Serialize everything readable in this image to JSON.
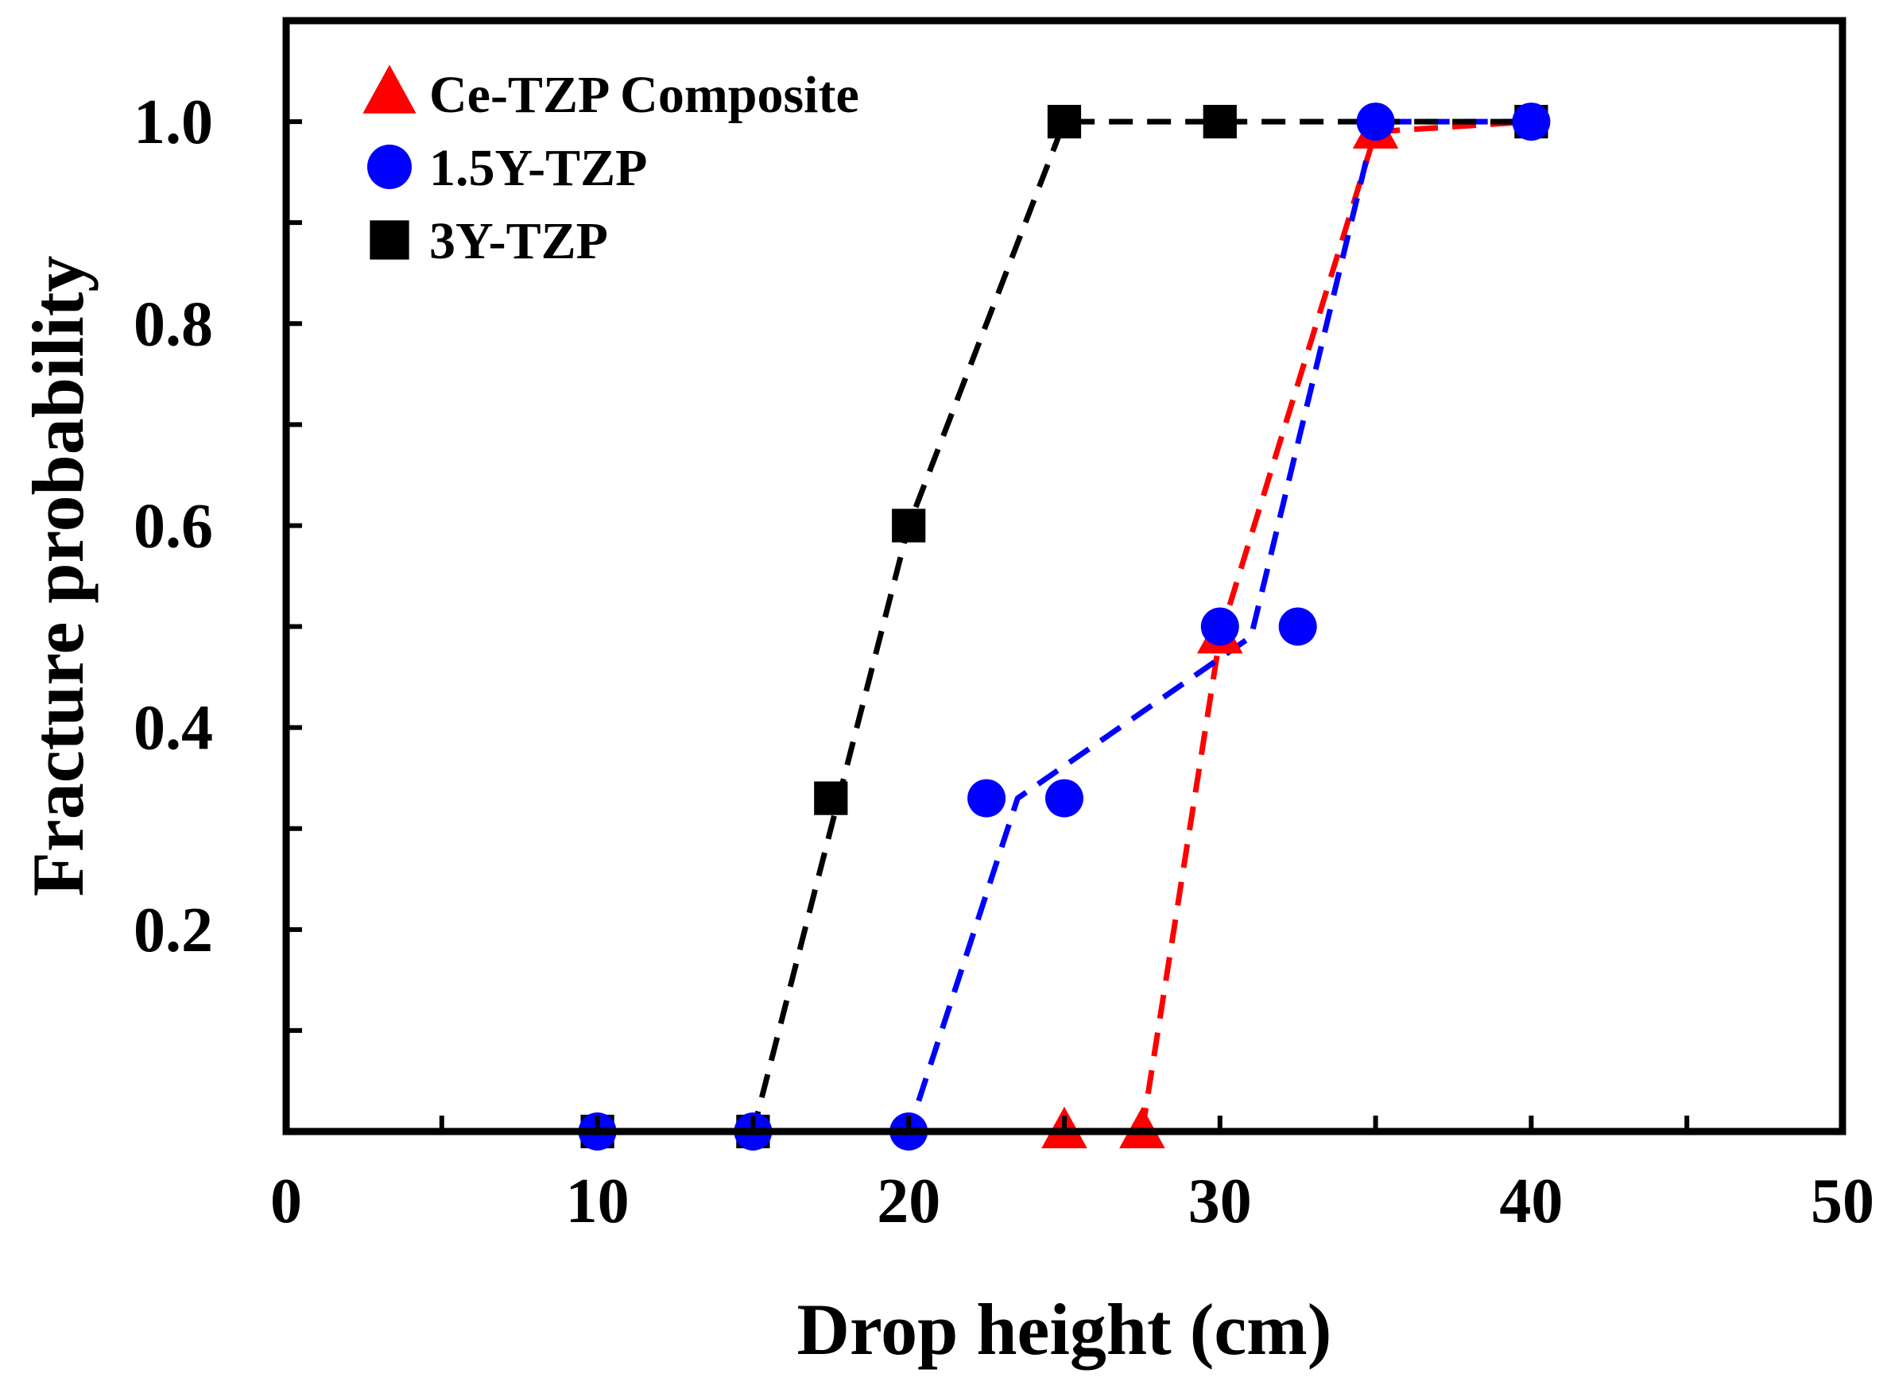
{
  "chart_data": {
    "type": "line",
    "title": "",
    "xlabel": "Drop height (cm)",
    "ylabel": "Fracture probability",
    "xlim": [
      0,
      50
    ],
    "ylim": [
      0,
      1.1
    ],
    "x_ticks": [
      0,
      10,
      20,
      30,
      40,
      50
    ],
    "x_tick_labels": [
      "0",
      "10",
      "20",
      "30",
      "40",
      "50"
    ],
    "y_ticks": [
      0.2,
      0.4,
      0.6,
      0.8,
      1.0
    ],
    "y_tick_labels": [
      "0.2",
      "0.4",
      "0.6",
      "0.8",
      "1.0"
    ],
    "grid": false,
    "legend_position": "top-left",
    "series": [
      {
        "name": "Ce-TZP Composite",
        "color": "#ff0000",
        "marker": "triangle",
        "points": [
          {
            "x": 25,
            "y": 0.0
          },
          {
            "x": 27.5,
            "y": 0.0
          },
          {
            "x": 30,
            "y": 0.49
          },
          {
            "x": 35,
            "y": 0.99
          }
        ],
        "fit_line": [
          {
            "x": 27.5,
            "y": 0.0
          },
          {
            "x": 30,
            "y": 0.49
          },
          {
            "x": 35,
            "y": 0.99
          },
          {
            "x": 40,
            "y": 1.0
          }
        ]
      },
      {
        "name": "1.5Y-TZP",
        "color": "#0000ff",
        "marker": "circle",
        "points": [
          {
            "x": 10,
            "y": 0.0
          },
          {
            "x": 15,
            "y": 0.0
          },
          {
            "x": 20,
            "y": 0.0
          },
          {
            "x": 22.5,
            "y": 0.33
          },
          {
            "x": 25,
            "y": 0.33
          },
          {
            "x": 30,
            "y": 0.5
          },
          {
            "x": 32.5,
            "y": 0.5
          },
          {
            "x": 35,
            "y": 1.0
          },
          {
            "x": 40,
            "y": 1.0
          }
        ],
        "fit_line": [
          {
            "x": 10,
            "y": 0.0
          },
          {
            "x": 20,
            "y": 0.0
          },
          {
            "x": 23.5,
            "y": 0.33
          },
          {
            "x": 31,
            "y": 0.49
          },
          {
            "x": 35,
            "y": 1.0
          },
          {
            "x": 40,
            "y": 1.0
          }
        ]
      },
      {
        "name": "3Y-TZP",
        "color": "#000000",
        "marker": "square",
        "points": [
          {
            "x": 10,
            "y": 0.0
          },
          {
            "x": 15,
            "y": 0.0
          },
          {
            "x": 17.5,
            "y": 0.33
          },
          {
            "x": 20,
            "y": 0.6
          },
          {
            "x": 25,
            "y": 1.0
          },
          {
            "x": 30,
            "y": 1.0
          },
          {
            "x": 40,
            "y": 1.0
          }
        ],
        "fit_line": [
          {
            "x": 10,
            "y": 0.0
          },
          {
            "x": 15,
            "y": 0.0
          },
          {
            "x": 20,
            "y": 0.6
          },
          {
            "x": 25,
            "y": 1.0
          },
          {
            "x": 40,
            "y": 1.0
          }
        ]
      }
    ]
  }
}
